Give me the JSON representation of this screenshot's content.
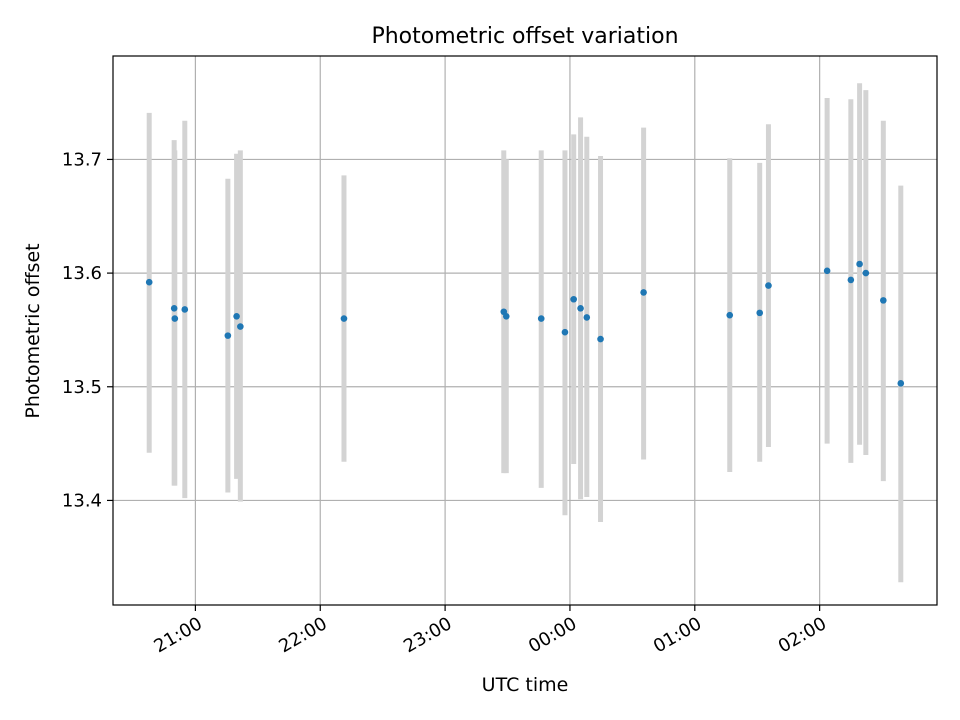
{
  "chart_data": {
    "type": "scatter",
    "title": "Photometric offset variation",
    "xlabel": "UTC time",
    "ylabel": "Photometric offset",
    "x_unit": "hours UTC relative to 00:00 of the second night",
    "xlim": [
      -3.66,
      2.94
    ],
    "ylim": [
      13.308,
      13.791
    ],
    "xticks": [
      {
        "value": -3,
        "label": "21:00"
      },
      {
        "value": -2,
        "label": "22:00"
      },
      {
        "value": -1,
        "label": "23:00"
      },
      {
        "value": 0,
        "label": "00:00"
      },
      {
        "value": 1,
        "label": "01:00"
      },
      {
        "value": 2,
        "label": "02:00"
      }
    ],
    "yticks": [
      {
        "value": 13.4,
        "label": "13.4"
      },
      {
        "value": 13.5,
        "label": "13.5"
      },
      {
        "value": 13.6,
        "label": "13.6"
      },
      {
        "value": 13.7,
        "label": "13.7"
      }
    ],
    "grid": true,
    "colors": {
      "points": "#1f77b4",
      "errorbars": "#d3d3d3",
      "grid": "#b0b0b0"
    },
    "series": [
      {
        "points": [
          {
            "x": -3.37,
            "y": 13.592,
            "yerr_low": 13.442,
            "yerr_high": 13.741
          },
          {
            "x": -3.17,
            "y": 13.569,
            "yerr_low": 13.413,
            "yerr_high": 13.717
          },
          {
            "x": -3.165,
            "y": 13.56,
            "yerr_low": 13.413,
            "yerr_high": 13.708
          },
          {
            "x": -3.085,
            "y": 13.568,
            "yerr_low": 13.402,
            "yerr_high": 13.734
          },
          {
            "x": -2.74,
            "y": 13.545,
            "yerr_low": 13.407,
            "yerr_high": 13.683
          },
          {
            "x": -2.67,
            "y": 13.562,
            "yerr_low": 13.419,
            "yerr_high": 13.705
          },
          {
            "x": -2.64,
            "y": 13.553,
            "yerr_low": 13.399,
            "yerr_high": 13.708
          },
          {
            "x": -1.81,
            "y": 13.56,
            "yerr_low": 13.434,
            "yerr_high": 13.686
          },
          {
            "x": 0.03,
            "y": 13.577,
            "yerr_low": 13.432,
            "yerr_high": 13.722
          },
          {
            "x": -0.53,
            "y": 13.566,
            "yerr_low": 13.424,
            "yerr_high": 13.708
          },
          {
            "x": -0.51,
            "y": 13.562,
            "yerr_low": 13.424,
            "yerr_high": 13.7
          },
          {
            "x": -0.23,
            "y": 13.56,
            "yerr_low": 13.411,
            "yerr_high": 13.708
          },
          {
            "x": -0.04,
            "y": 13.548,
            "yerr_low": 13.387,
            "yerr_high": 13.708
          },
          {
            "x": 0.085,
            "y": 13.569,
            "yerr_low": 13.401,
            "yerr_high": 13.737
          },
          {
            "x": 0.135,
            "y": 13.561,
            "yerr_low": 13.403,
            "yerr_high": 13.72
          },
          {
            "x": 0.245,
            "y": 13.542,
            "yerr_low": 13.381,
            "yerr_high": 13.703
          },
          {
            "x": 0.59,
            "y": 13.583,
            "yerr_low": 13.436,
            "yerr_high": 13.728
          },
          {
            "x": 1.28,
            "y": 13.563,
            "yerr_low": 13.425,
            "yerr_high": 13.701
          },
          {
            "x": 1.52,
            "y": 13.565,
            "yerr_low": 13.434,
            "yerr_high": 13.697
          },
          {
            "x": 1.59,
            "y": 13.589,
            "yerr_low": 13.447,
            "yerr_high": 13.731
          },
          {
            "x": 2.06,
            "y": 13.602,
            "yerr_low": 13.45,
            "yerr_high": 13.754
          },
          {
            "x": 2.25,
            "y": 13.594,
            "yerr_low": 13.433,
            "yerr_high": 13.753
          },
          {
            "x": 2.32,
            "y": 13.608,
            "yerr_low": 13.449,
            "yerr_high": 13.767
          },
          {
            "x": 2.37,
            "y": 13.6,
            "yerr_low": 13.44,
            "yerr_high": 13.761
          },
          {
            "x": 2.51,
            "y": 13.576,
            "yerr_low": 13.417,
            "yerr_high": 13.734
          },
          {
            "x": 2.65,
            "y": 13.503,
            "yerr_low": 13.328,
            "yerr_high": 13.677
          }
        ]
      }
    ]
  }
}
